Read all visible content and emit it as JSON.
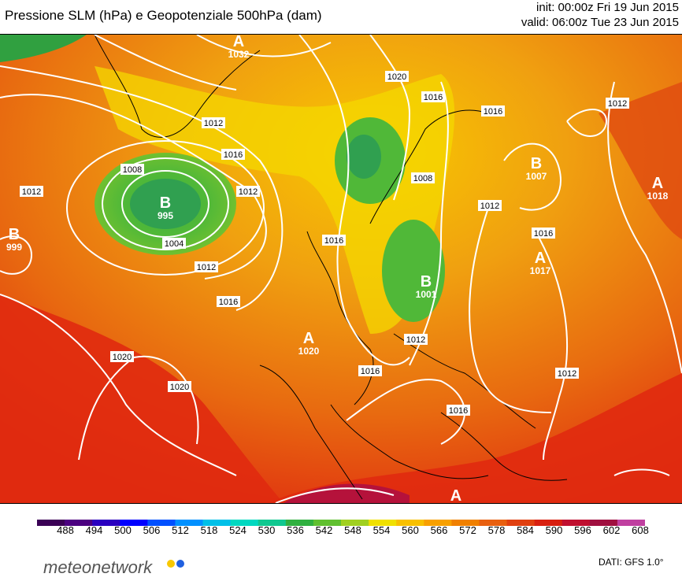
{
  "header": {
    "title": "Pressione SLM (hPa) e Geopotenziale 500hPa (dam)",
    "init": "init: 00:00z Fri 19 Jun 2015",
    "valid": "valid: 06:00z Tue 23 Jun 2015"
  },
  "isobar_labels": [
    "1032",
    "1020",
    "1012",
    "1016",
    "1020",
    "1016",
    "1012",
    "1008",
    "1004",
    "1012",
    "1016",
    "1020",
    "1020",
    "1016",
    "1012",
    "1016",
    "1016",
    "1012",
    "1016",
    "1008",
    "1012",
    "1016",
    "1012",
    "1016",
    "1012",
    "1008",
    "1016"
  ],
  "systems": [
    {
      "letter": "A",
      "value": "1032"
    },
    {
      "letter": "B",
      "value": "995"
    },
    {
      "letter": "B",
      "value": "999"
    },
    {
      "letter": "A",
      "value": "1020"
    },
    {
      "letter": "B",
      "value": "1001"
    },
    {
      "letter": "B",
      "value": "1007"
    },
    {
      "letter": "A",
      "value": "1017"
    },
    {
      "letter": "A",
      "value": "1018"
    },
    {
      "letter": "A",
      "value": ""
    }
  ],
  "colorbar": {
    "ticks": [
      "488",
      "494",
      "500",
      "506",
      "512",
      "518",
      "524",
      "530",
      "536",
      "542",
      "548",
      "554",
      "560",
      "566",
      "572",
      "578",
      "584",
      "590",
      "596",
      "602",
      "608"
    ],
    "colors": [
      "#3a0055",
      "#4b0080",
      "#2a00c0",
      "#0000ff",
      "#0050ff",
      "#0090ff",
      "#00c0e8",
      "#00d8c0",
      "#10c890",
      "#30b040",
      "#60c030",
      "#a0d020",
      "#f0e000",
      "#f8c000",
      "#f8a000",
      "#f08000",
      "#e86010",
      "#e04010",
      "#d82010",
      "#c01030",
      "#a01040",
      "#c040a0"
    ]
  },
  "footer": {
    "logo_text": "meteonetwork",
    "source": "DATI:  GFS  1.0°"
  }
}
